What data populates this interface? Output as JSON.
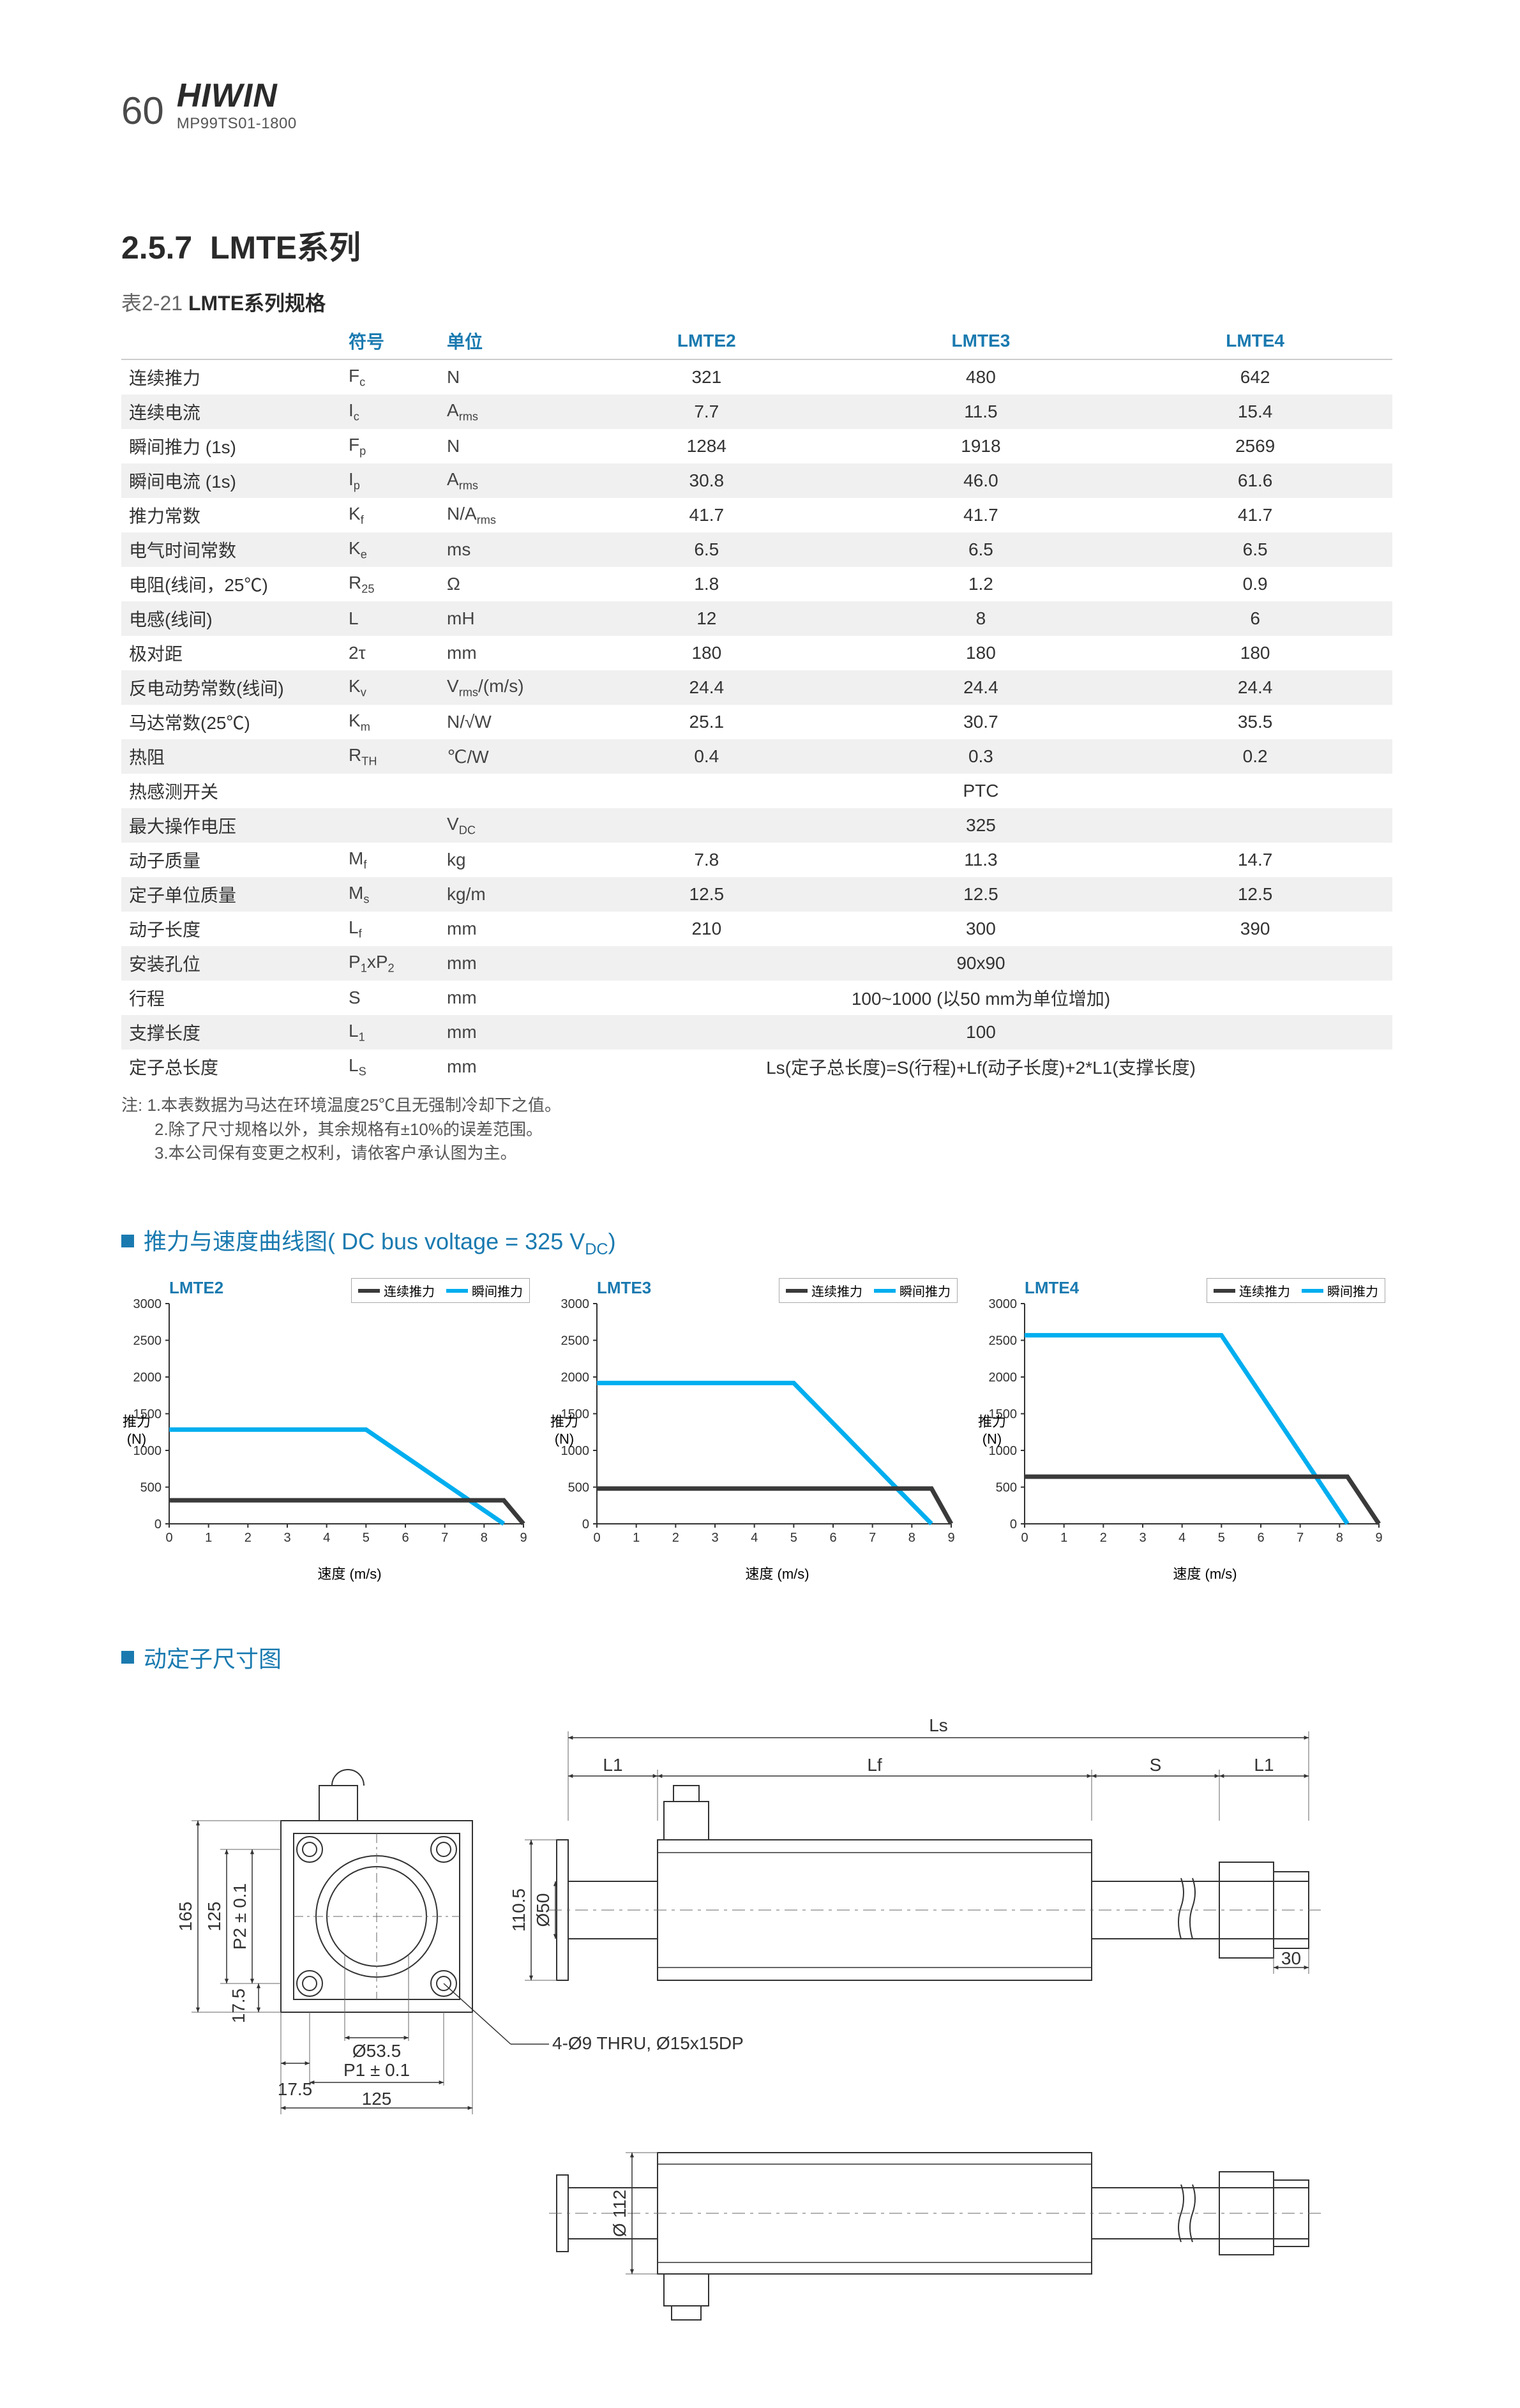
{
  "header": {
    "page_number": "60",
    "logo": "HIWIN",
    "subcode": "MP99TS01-1800"
  },
  "section": {
    "number": "2.5.7",
    "title": "LMTE系列"
  },
  "table": {
    "caption_prefix": "表2-21 ",
    "caption_bold": "LMTE系列规格",
    "head": {
      "symbol": "符号",
      "unit": "单位",
      "c1": "LMTE2",
      "c2": "LMTE3",
      "c3": "LMTE4"
    },
    "rows": [
      {
        "label": "连续推力",
        "sym": "F",
        "sub": "c",
        "unit": "N",
        "v": [
          "321",
          "480",
          "642"
        ]
      },
      {
        "label": "连续电流",
        "sym": "I",
        "sub": "c",
        "unit": "Arms",
        "unitsub": "rms",
        "unitpre": "A",
        "v": [
          "7.7",
          "11.5",
          "15.4"
        ]
      },
      {
        "label": "瞬间推力 (1s)",
        "sym": "F",
        "sub": "p",
        "unit": "N",
        "v": [
          "1284",
          "1918",
          "2569"
        ]
      },
      {
        "label": "瞬间电流 (1s)",
        "sym": "I",
        "sub": "p",
        "unit": "Arms",
        "unitsub": "rms",
        "unitpre": "A",
        "v": [
          "30.8",
          "46.0",
          "61.6"
        ]
      },
      {
        "label": "推力常数",
        "sym": "K",
        "sub": "f",
        "unit": "N/Arms",
        "unitsub": "rms",
        "unitpre": "N/A",
        "v": [
          "41.7",
          "41.7",
          "41.7"
        ]
      },
      {
        "label": "电气时间常数",
        "sym": "K",
        "sub": "e",
        "unit": "ms",
        "v": [
          "6.5",
          "6.5",
          "6.5"
        ]
      },
      {
        "label": "电阻(线间，25℃)",
        "sym": "R",
        "sub": "25",
        "unit": "Ω",
        "v": [
          "1.8",
          "1.2",
          "0.9"
        ]
      },
      {
        "label": "电感(线间)",
        "sym": "L",
        "sub": "",
        "unit": "mH",
        "v": [
          "12",
          "8",
          "6"
        ]
      },
      {
        "label": "极对距",
        "sym": "2τ",
        "sub": "",
        "unit": "mm",
        "v": [
          "180",
          "180",
          "180"
        ]
      },
      {
        "label": "反电动势常数(线间)",
        "sym": "K",
        "sub": "v",
        "unit": "Vrms/(m/s)",
        "unitsub": "rms",
        "unitpre": "V",
        "unitsuf": "/(m/s)",
        "v": [
          "24.4",
          "24.4",
          "24.4"
        ]
      },
      {
        "label": "马达常数(25℃)",
        "sym": "K",
        "sub": "m",
        "unit": "N/√W",
        "v": [
          "25.1",
          "30.7",
          "35.5"
        ]
      },
      {
        "label": "热阻",
        "sym": "R",
        "sub": "TH",
        "unit": "℃/W",
        "v": [
          "0.4",
          "0.3",
          "0.2"
        ]
      },
      {
        "label": "热感测开关",
        "sym": "",
        "sub": "",
        "unit": "",
        "span": "PTC"
      },
      {
        "label": "最大操作电压",
        "sym": "",
        "sub": "",
        "unit": "VDC",
        "unitsub": "DC",
        "unitpre": "V",
        "span": "325"
      },
      {
        "label": "动子质量",
        "sym": "M",
        "sub": "f",
        "unit": "kg",
        "v": [
          "7.8",
          "11.3",
          "14.7"
        ]
      },
      {
        "label": "定子单位质量",
        "sym": "M",
        "sub": "s",
        "unit": "kg/m",
        "v": [
          "12.5",
          "12.5",
          "12.5"
        ]
      },
      {
        "label": "动子长度",
        "sym": "L",
        "sub": "f",
        "unit": "mm",
        "v": [
          "210",
          "300",
          "390"
        ]
      },
      {
        "label": "安装孔位",
        "sym": "P1xP2",
        "sub": "",
        "unit": "mm",
        "span": "90x90"
      },
      {
        "label": "行程",
        "sym": "S",
        "sub": "",
        "unit": "mm",
        "span": "100~1000 (以50 mm为单位增加)"
      },
      {
        "label": "支撑长度",
        "sym": "L",
        "sub": "1",
        "unit": "mm",
        "span": "100"
      },
      {
        "label": "定子总长度",
        "sym": "L",
        "sub": "S",
        "unit": "mm",
        "span": "Ls(定子总长度)=S(行程)+Lf(动子长度)+2*L1(支撑长度)"
      }
    ],
    "notes": [
      "注: 1.本表数据为马达在环境温度25℃且无强制冷却下之值。",
      "　　2.除了尺寸规格以外，其余规格有±10%的误差范围。",
      "　　3.本公司保有变更之权利，请依客户承认图为主。"
    ]
  },
  "chartSection": {
    "title": "推力与速度曲线图( DC bus voltage = 325 V",
    "sub": "DC",
    "suffix": ")"
  },
  "charts": [
    {
      "title": "LMTE2",
      "leg1": "连续推力",
      "leg2": "瞬间推力",
      "ylim": [
        0,
        3000
      ],
      "ystep": 500,
      "xlim": [
        0,
        9
      ],
      "xstep": 1,
      "series1": {
        "color": "#3a3a3a",
        "pts": [
          [
            0,
            321
          ],
          [
            8.5,
            321
          ],
          [
            9,
            0
          ]
        ]
      },
      "series2": {
        "color": "#00aeef",
        "pts": [
          [
            0,
            1284
          ],
          [
            5,
            1284
          ],
          [
            8.5,
            0
          ]
        ]
      },
      "ylabel": "推力\n(N)",
      "xlabel": "速度 (m/s)"
    },
    {
      "title": "LMTE3",
      "leg1": "连续推力",
      "leg2": "瞬间推力",
      "ylim": [
        0,
        3000
      ],
      "ystep": 500,
      "xlim": [
        0,
        9
      ],
      "xstep": 1,
      "series1": {
        "color": "#3a3a3a",
        "pts": [
          [
            0,
            480
          ],
          [
            8.5,
            480
          ],
          [
            9,
            0
          ]
        ]
      },
      "series2": {
        "color": "#00aeef",
        "pts": [
          [
            0,
            1918
          ],
          [
            5,
            1918
          ],
          [
            8.5,
            0
          ]
        ]
      },
      "ylabel": "推力\n(N)",
      "xlabel": "速度 (m/s)"
    },
    {
      "title": "LMTE4",
      "leg1": "连续推力",
      "leg2": "瞬间推力",
      "ylim": [
        0,
        3000
      ],
      "ystep": 500,
      "xlim": [
        0,
        9
      ],
      "xstep": 1,
      "series1": {
        "color": "#3a3a3a",
        "pts": [
          [
            0,
            642
          ],
          [
            8.2,
            642
          ],
          [
            9,
            0
          ]
        ]
      },
      "series2": {
        "color": "#00aeef",
        "pts": [
          [
            0,
            2569
          ],
          [
            5,
            2569
          ],
          [
            8.2,
            0
          ]
        ]
      },
      "ylabel": "推力\n(N)",
      "xlabel": "速度 (m/s)"
    }
  ],
  "dimSection": {
    "title": "动定子尺寸图"
  },
  "dims": {
    "Ls": "Ls",
    "L1": "L1",
    "Lf": "Lf",
    "S": "S",
    "h165": "165",
    "h125": "125",
    "hP2": "P2 ± 0.1",
    "h17_5": "17.5",
    "w17_5": "17.5",
    "wP1": "P1 ± 0.1",
    "w125": "125",
    "d53_5": "Ø53.5",
    "holes": "4-Ø9 THRU, Ø15x15DP",
    "h110_5": "110.5",
    "d50": "Ø50",
    "w30": "30",
    "d112": "Ø 112",
    "stroke": "#333",
    "fill": "none",
    "thin": "#666"
  }
}
